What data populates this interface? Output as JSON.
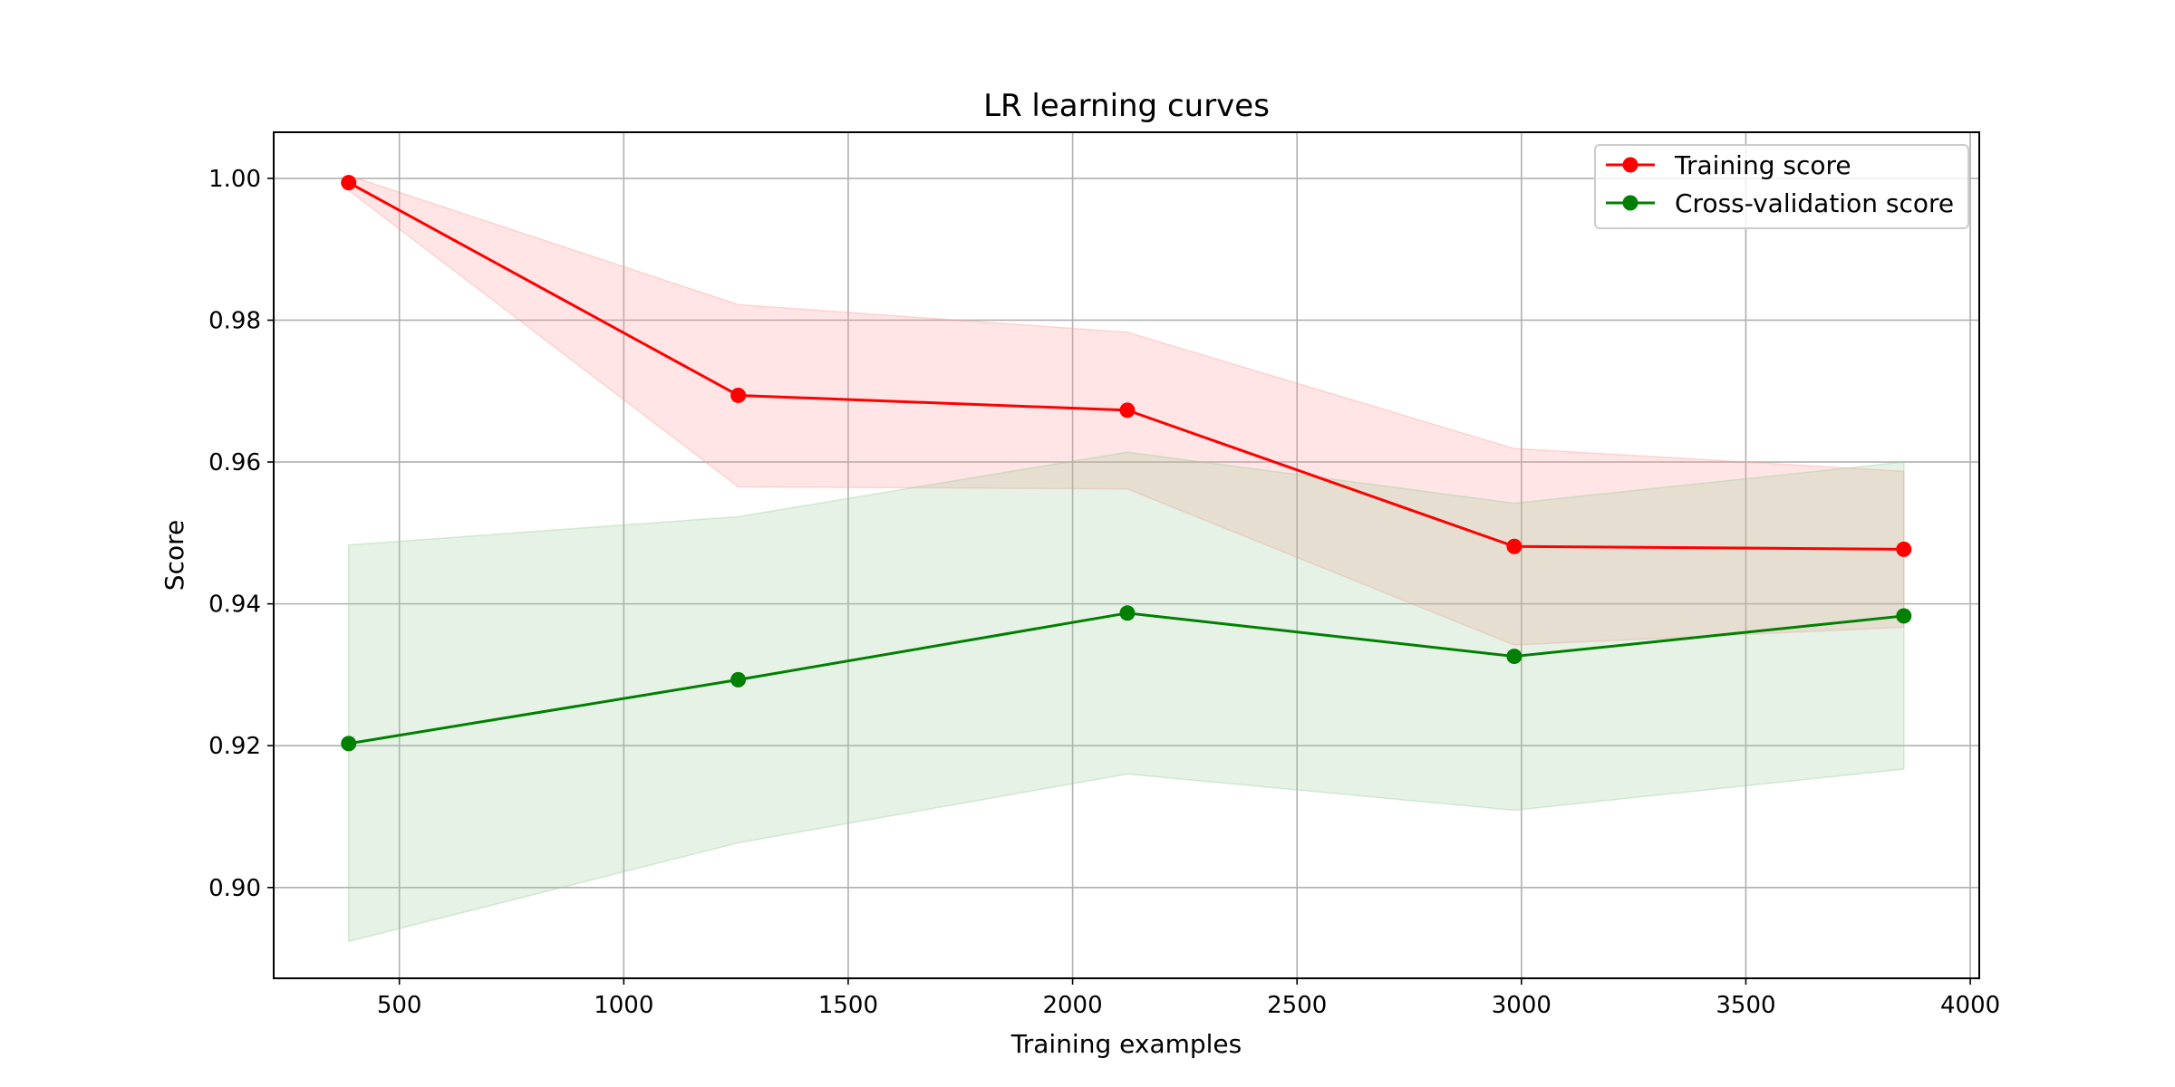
{
  "chart_data": {
    "type": "line",
    "title": "LR learning curves",
    "xlabel": "Training examples",
    "ylabel": "Score",
    "xlim": [
      220,
      4020
    ],
    "ylim": [
      0.8872,
      1.0065
    ],
    "grid": true,
    "legend_position": "top-right",
    "xticks": [
      500,
      1000,
      1500,
      2000,
      2500,
      3000,
      3500,
      4000
    ],
    "xtick_labels": [
      "500",
      "1000",
      "1500",
      "2000",
      "2500",
      "3000",
      "3500",
      "4000"
    ],
    "yticks": [
      0.9,
      0.92,
      0.94,
      0.96,
      0.98,
      1.0
    ],
    "ytick_labels": [
      "0.90",
      "0.92",
      "0.94",
      "0.96",
      "0.98",
      "1.00"
    ],
    "x": [
      387,
      1255,
      2122,
      2984,
      3852
    ],
    "series": [
      {
        "name": "Training score",
        "color": "#ff0000",
        "band_color": "#ff9999",
        "values": [
          0.9994,
          0.9694,
          0.9673,
          0.9481,
          0.9477
        ],
        "upper": [
          1.0004,
          0.9822,
          0.9783,
          0.9619,
          0.9587
        ],
        "lower": [
          0.9983,
          0.9565,
          0.9562,
          0.9342,
          0.9367
        ]
      },
      {
        "name": "Cross-validation score",
        "color": "#008000",
        "band_color": "#99cc99",
        "values": [
          0.9203,
          0.9293,
          0.9387,
          0.9326,
          0.9383
        ],
        "upper": [
          0.9483,
          0.9523,
          0.9614,
          0.9542,
          0.96
        ],
        "lower": [
          0.8924,
          0.9063,
          0.916,
          0.9109,
          0.9167
        ]
      }
    ]
  }
}
